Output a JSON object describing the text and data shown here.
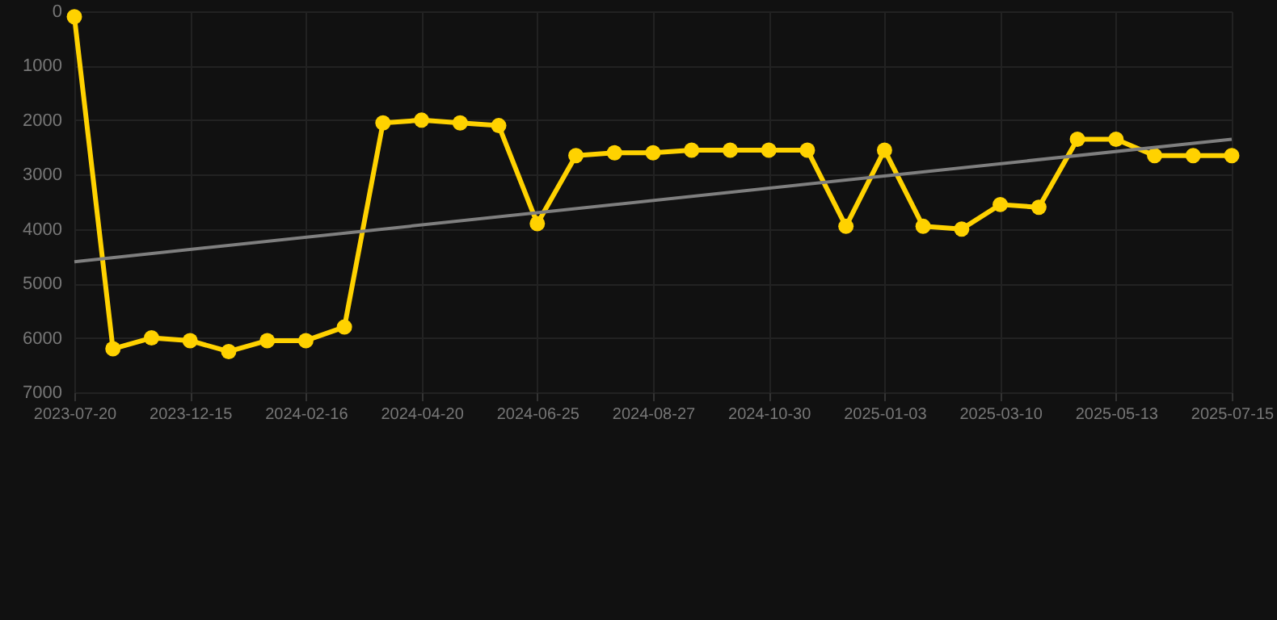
{
  "chart_data": {
    "type": "line",
    "categories": [
      "2023-07-20",
      null,
      null,
      "2023-12-15",
      null,
      null,
      "2024-02-16",
      null,
      null,
      "2024-04-20",
      null,
      null,
      "2024-06-25",
      null,
      null,
      "2024-08-27",
      null,
      null,
      "2024-10-30",
      null,
      null,
      "2025-01-03",
      null,
      null,
      "2025-03-10",
      null,
      null,
      "2025-05-13",
      null,
      null,
      "2025-07-15"
    ],
    "series": [
      {
        "color": "#ffd200",
        "marker": "circle",
        "values": [
          100,
          6200,
          6000,
          6050,
          6250,
          6050,
          6050,
          5800,
          2050,
          2000,
          2050,
          2100,
          3900,
          2650,
          2600,
          2600,
          2550,
          2550,
          2550,
          2550,
          3950,
          2550,
          3950,
          4000,
          3550,
          3600,
          2350,
          2350,
          2650,
          2650,
          2650
        ]
      },
      {
        "type": "line",
        "color": "#7f7f7f",
        "marker": "none",
        "values": [
          4600,
          null,
          null,
          null,
          null,
          null,
          null,
          null,
          null,
          null,
          null,
          null,
          null,
          null,
          null,
          null,
          null,
          null,
          null,
          null,
          null,
          null,
          null,
          null,
          null,
          null,
          null,
          null,
          null,
          null,
          2350
        ]
      }
    ],
    "ylim": [
      7000,
      0
    ],
    "yticks": [
      0,
      1000,
      2000,
      3000,
      4000,
      5000,
      6000,
      7000
    ],
    "grid": true
  }
}
